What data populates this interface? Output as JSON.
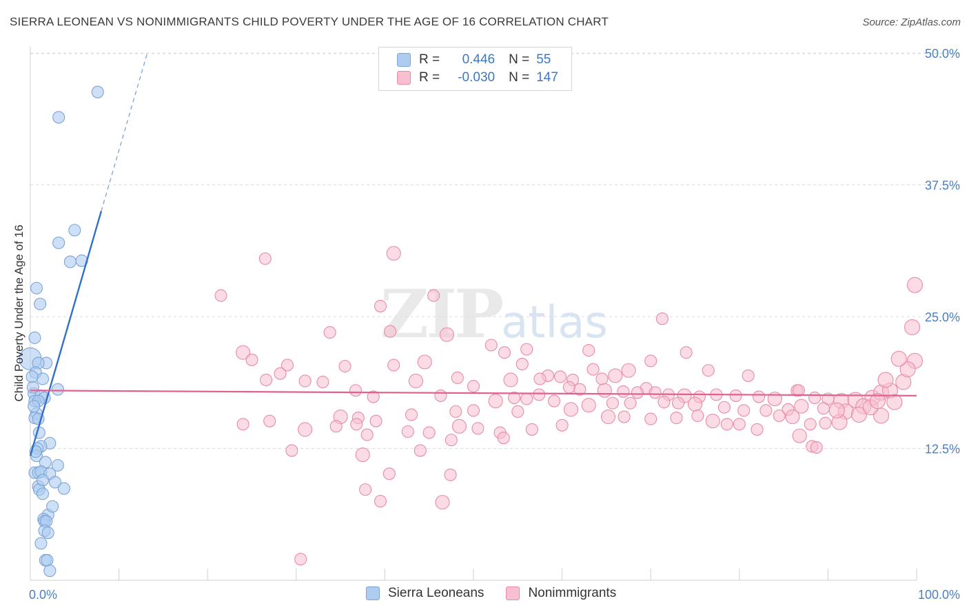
{
  "title": "SIERRA LEONEAN VS NONIMMIGRANTS CHILD POVERTY UNDER THE AGE OF 16 CORRELATION CHART",
  "source": "Source: ZipAtlas.com",
  "watermark": {
    "zip": "ZIP",
    "atlas": "atlas"
  },
  "legend": {
    "r_label": "R =",
    "n_label": "N =",
    "rows": [
      {
        "r": "0.446",
        "n": "55",
        "color": "#aecbf0"
      },
      {
        "r": "-0.030",
        "n": "147",
        "color": "#f7bfd0"
      }
    ]
  },
  "colors": {
    "blue_fill": "#aecbf0",
    "blue_stroke": "#7ba3d8",
    "blue_line": "#2f6fcb",
    "pink_fill": "#f7bfd0",
    "pink_stroke": "#e88aa8",
    "pink_line": "#e0608f",
    "axis_text": "#4a7fc4",
    "grid": "#dddddd"
  },
  "chart_data": {
    "type": "scatter",
    "title": "SIERRA LEONEAN VS NONIMMIGRANTS CHILD POVERTY UNDER THE AGE OF 16 CORRELATION CHART",
    "xlabel": "",
    "ylabel": "Child Poverty Under the Age of 16",
    "xlim": [
      0,
      100
    ],
    "ylim": [
      0,
      52
    ],
    "x_ticks": [
      "0.0%",
      "100.0%"
    ],
    "y_ticks": [
      {
        "value": 12.5,
        "label": "12.5%"
      },
      {
        "value": 25.0,
        "label": "25.0%"
      },
      {
        "value": 37.5,
        "label": "37.5%"
      },
      {
        "value": 50.0,
        "label": "50.0%"
      }
    ],
    "grid": true,
    "legend_position": "bottom",
    "series": [
      {
        "name": "Sierra Leoneans",
        "r": 0.446,
        "n": 55,
        "trend": {
          "x": [
            0.0,
            8.0
          ],
          "y": [
            11.8,
            35.0
          ],
          "dashed_to": [
            13.2,
            50.0
          ]
        },
        "points": [
          [
            7.6,
            46.3
          ],
          [
            3.2,
            43.9
          ],
          [
            5.0,
            33.2
          ],
          [
            3.2,
            32.0
          ],
          [
            5.8,
            30.3
          ],
          [
            4.5,
            30.2
          ],
          [
            0.7,
            27.7
          ],
          [
            1.1,
            26.2
          ],
          [
            0.5,
            23.0
          ],
          [
            0.0,
            21.0
          ],
          [
            1.8,
            20.6
          ],
          [
            0.9,
            20.6
          ],
          [
            0.6,
            19.7
          ],
          [
            1.4,
            19.1
          ],
          [
            0.2,
            19.3
          ],
          [
            3.1,
            18.1
          ],
          [
            0.4,
            17.7
          ],
          [
            1.2,
            17.5
          ],
          [
            1.6,
            17.3
          ],
          [
            0.5,
            17.0
          ],
          [
            0.9,
            17.0
          ],
          [
            0.7,
            15.8
          ],
          [
            0.5,
            15.4
          ],
          [
            0.9,
            15.3
          ],
          [
            2.2,
            13.0
          ],
          [
            1.2,
            12.7
          ],
          [
            0.8,
            12.5
          ],
          [
            0.7,
            11.8
          ],
          [
            1.7,
            11.2
          ],
          [
            3.1,
            10.9
          ],
          [
            0.5,
            10.2
          ],
          [
            0.9,
            10.2
          ],
          [
            1.2,
            10.3
          ],
          [
            2.2,
            10.1
          ],
          [
            2.8,
            9.3
          ],
          [
            0.9,
            8.9
          ],
          [
            1.0,
            8.6
          ],
          [
            3.8,
            8.7
          ],
          [
            1.4,
            8.2
          ],
          [
            2.0,
            6.2
          ],
          [
            1.5,
            5.8
          ],
          [
            1.6,
            5.6
          ],
          [
            1.8,
            5.6
          ],
          [
            1.6,
            4.7
          ],
          [
            2.0,
            4.5
          ],
          [
            1.7,
            1.9
          ],
          [
            1.9,
            1.9
          ],
          [
            2.2,
            0.9
          ],
          [
            0.3,
            18.3
          ],
          [
            1.0,
            14.0
          ],
          [
            0.6,
            12.2
          ],
          [
            1.4,
            9.5
          ],
          [
            0.4,
            16.5
          ],
          [
            2.5,
            7.0
          ],
          [
            1.2,
            3.5
          ]
        ]
      },
      {
        "name": "Nonimmigrants",
        "r": -0.03,
        "n": 147,
        "trend": {
          "x": [
            0.0,
            100.0
          ],
          "y": [
            18.0,
            17.5
          ]
        },
        "points": [
          [
            41.0,
            31.0
          ],
          [
            26.5,
            30.5
          ],
          [
            21.5,
            27.0
          ],
          [
            45.5,
            27.0
          ],
          [
            39.5,
            26.0
          ],
          [
            99.8,
            28.0
          ],
          [
            99.5,
            24.0
          ],
          [
            71.3,
            24.8
          ],
          [
            33.8,
            23.5
          ],
          [
            40.6,
            23.6
          ],
          [
            47.0,
            23.3
          ],
          [
            52.0,
            22.3
          ],
          [
            56.0,
            21.9
          ],
          [
            63.0,
            21.8
          ],
          [
            74.0,
            21.6
          ],
          [
            24.0,
            21.6
          ],
          [
            25.0,
            20.9
          ],
          [
            29.0,
            20.4
          ],
          [
            35.5,
            20.3
          ],
          [
            41.0,
            20.4
          ],
          [
            44.5,
            20.7
          ],
          [
            53.5,
            21.6
          ],
          [
            55.5,
            20.5
          ],
          [
            70.0,
            20.8
          ],
          [
            76.5,
            19.9
          ],
          [
            67.5,
            19.9
          ],
          [
            63.5,
            20.0
          ],
          [
            28.2,
            19.6
          ],
          [
            58.4,
            19.4
          ],
          [
            59.8,
            19.3
          ],
          [
            66.0,
            19.4
          ],
          [
            64.5,
            19.1
          ],
          [
            81.0,
            19.4
          ],
          [
            48.2,
            19.2
          ],
          [
            57.5,
            19.1
          ],
          [
            54.2,
            19.0
          ],
          [
            61.2,
            19.0
          ],
          [
            26.6,
            19.0
          ],
          [
            31.0,
            18.9
          ],
          [
            33.0,
            18.8
          ],
          [
            43.5,
            18.9
          ],
          [
            50.0,
            18.4
          ],
          [
            69.5,
            18.2
          ],
          [
            60.8,
            18.3
          ],
          [
            62.0,
            18.1
          ],
          [
            64.8,
            18.0
          ],
          [
            66.9,
            17.9
          ],
          [
            68.5,
            17.8
          ],
          [
            70.5,
            17.8
          ],
          [
            72.0,
            17.6
          ],
          [
            73.8,
            17.5
          ],
          [
            75.5,
            17.4
          ],
          [
            77.4,
            17.6
          ],
          [
            79.6,
            17.5
          ],
          [
            82.2,
            17.4
          ],
          [
            84.0,
            17.2
          ],
          [
            86.5,
            18.0
          ],
          [
            88.5,
            17.3
          ],
          [
            90.0,
            17.2
          ],
          [
            91.5,
            17.0
          ],
          [
            93.1,
            17.1
          ],
          [
            95.0,
            17.3
          ],
          [
            96.0,
            17.8
          ],
          [
            97.0,
            18.0
          ],
          [
            98.5,
            18.8
          ],
          [
            99.8,
            20.8
          ],
          [
            99.0,
            20.0
          ],
          [
            56.0,
            17.2
          ],
          [
            57.4,
            17.6
          ],
          [
            54.6,
            17.3
          ],
          [
            52.5,
            17.0
          ],
          [
            36.7,
            18.0
          ],
          [
            46.3,
            17.5
          ],
          [
            38.7,
            17.4
          ],
          [
            59.1,
            17.0
          ],
          [
            63.0,
            16.6
          ],
          [
            65.7,
            16.8
          ],
          [
            67.7,
            16.8
          ],
          [
            71.5,
            16.9
          ],
          [
            73.1,
            16.8
          ],
          [
            75.0,
            16.7
          ],
          [
            78.3,
            16.4
          ],
          [
            80.5,
            16.1
          ],
          [
            83.0,
            16.1
          ],
          [
            85.5,
            16.2
          ],
          [
            87.0,
            16.5
          ],
          [
            89.5,
            16.3
          ],
          [
            92.0,
            16.0
          ],
          [
            94.0,
            16.5
          ],
          [
            96.0,
            15.6
          ],
          [
            61.0,
            16.2
          ],
          [
            55.0,
            16.0
          ],
          [
            50.0,
            16.1
          ],
          [
            48.0,
            16.0
          ],
          [
            43.0,
            15.7
          ],
          [
            35.0,
            15.5
          ],
          [
            37.0,
            15.4
          ],
          [
            39.0,
            15.1
          ],
          [
            27.0,
            15.1
          ],
          [
            24.0,
            14.8
          ],
          [
            31.0,
            14.3
          ],
          [
            34.5,
            14.6
          ],
          [
            36.8,
            14.8
          ],
          [
            42.6,
            14.1
          ],
          [
            45.0,
            14.0
          ],
          [
            48.4,
            14.6
          ],
          [
            50.5,
            14.4
          ],
          [
            53.0,
            14.0
          ],
          [
            56.6,
            14.3
          ],
          [
            60.0,
            14.7
          ],
          [
            65.2,
            15.5
          ],
          [
            67.0,
            15.5
          ],
          [
            70.0,
            15.3
          ],
          [
            72.9,
            15.4
          ],
          [
            75.3,
            15.6
          ],
          [
            77.0,
            15.1
          ],
          [
            78.6,
            14.8
          ],
          [
            80.0,
            14.8
          ],
          [
            82.0,
            14.3
          ],
          [
            84.5,
            15.6
          ],
          [
            86.0,
            15.5
          ],
          [
            88.0,
            14.8
          ],
          [
            89.7,
            14.9
          ],
          [
            91.3,
            15.0
          ],
          [
            93.5,
            15.7
          ],
          [
            94.8,
            16.4
          ],
          [
            97.5,
            16.9
          ],
          [
            38.0,
            13.8
          ],
          [
            47.5,
            13.3
          ],
          [
            53.4,
            13.5
          ],
          [
            86.8,
            13.7
          ],
          [
            88.2,
            12.7
          ],
          [
            88.7,
            12.6
          ],
          [
            29.5,
            12.3
          ],
          [
            44.0,
            12.3
          ],
          [
            37.5,
            11.9
          ],
          [
            40.5,
            10.1
          ],
          [
            47.4,
            10.0
          ],
          [
            37.8,
            8.6
          ],
          [
            39.5,
            7.5
          ],
          [
            46.5,
            7.4
          ],
          [
            30.5,
            2.0
          ],
          [
            96.5,
            19.0
          ],
          [
            98.0,
            21.0
          ],
          [
            86.7,
            18.0
          ],
          [
            91.0,
            16.1
          ],
          [
            95.6,
            17.0
          ]
        ]
      }
    ]
  }
}
